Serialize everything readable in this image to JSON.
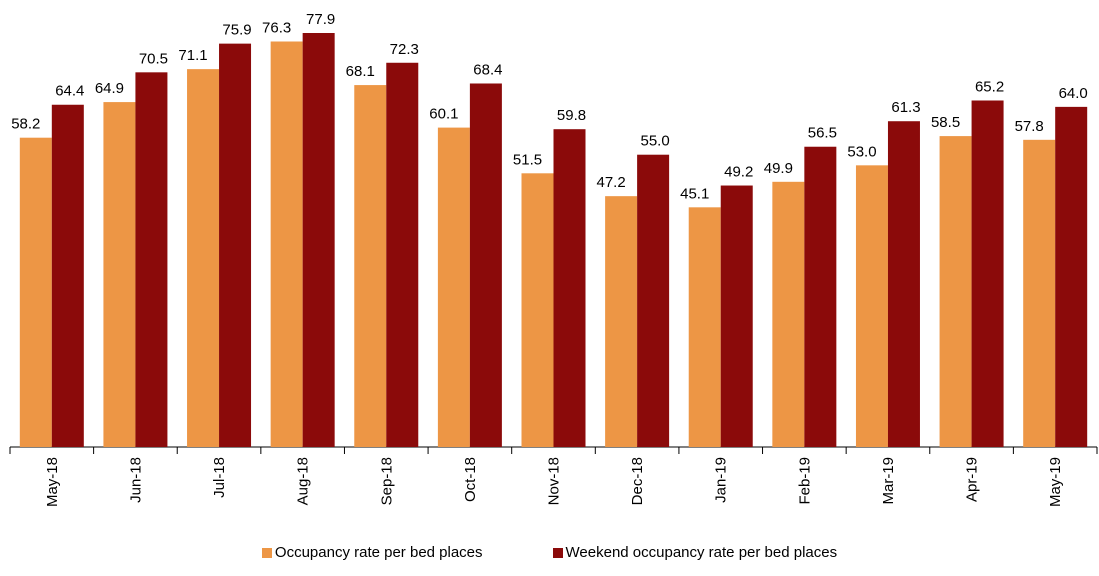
{
  "chart_data": {
    "type": "bar",
    "categories": [
      "May-18",
      "Jun-18",
      "Jul-18",
      "Aug-18",
      "Sep-18",
      "Oct-18",
      "Nov-18",
      "Dec-18",
      "Jan-19",
      "Feb-19",
      "Mar-19",
      "Apr-19",
      "May-19"
    ],
    "series": [
      {
        "name": "Occupancy rate per bed places",
        "color": "#ED9645",
        "values": [
          58.2,
          64.9,
          71.1,
          76.3,
          68.1,
          60.1,
          51.5,
          47.2,
          45.1,
          49.9,
          53.0,
          58.5,
          57.8
        ]
      },
      {
        "name": "Weekend occupancy rate per bed places",
        "color": "#8B0A0A",
        "values": [
          64.4,
          70.5,
          75.9,
          77.9,
          72.3,
          68.4,
          59.8,
          55.0,
          49.2,
          56.5,
          61.3,
          65.2,
          64.0
        ]
      }
    ],
    "ylim": [
      0,
      80
    ],
    "grid": false,
    "legend": "bottom-center",
    "data_labels": true
  }
}
